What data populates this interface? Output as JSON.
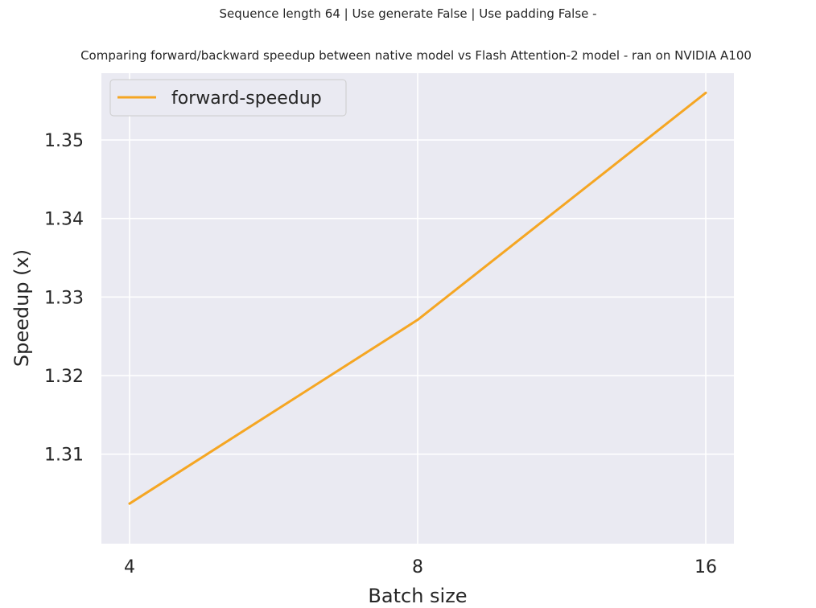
{
  "suptitle": "Sequence length 64 | Use generate False | Use padding False -",
  "subtitle": "Comparing forward/backward speedup between native model vs Flash Attention-2 model - ran on NVIDIA A100",
  "chart_data": {
    "type": "line",
    "title": "Comparing forward/backward speedup between native model vs Flash Attention-2 model - ran on NVIDIA A100",
    "suptitle": "Sequence length 64 | Use generate False | Use padding False -",
    "xlabel": "Batch size",
    "ylabel": "Speedup (x)",
    "x_scale": "log2",
    "x": [
      4,
      8,
      16
    ],
    "x_tick_labels": [
      "4",
      "8",
      "16"
    ],
    "y_ticks": [
      1.31,
      1.32,
      1.33,
      1.34,
      1.35
    ],
    "y_tick_labels": [
      "1.31",
      "1.32",
      "1.33",
      "1.34",
      "1.35"
    ],
    "ylim": [
      1.2986,
      1.3585
    ],
    "series": [
      {
        "name": "forward-speedup",
        "color": "#f5a623",
        "values": [
          1.3037,
          1.3271,
          1.356
        ]
      }
    ],
    "grid": true,
    "background": "#eaeaf2",
    "legend": "top-left"
  }
}
